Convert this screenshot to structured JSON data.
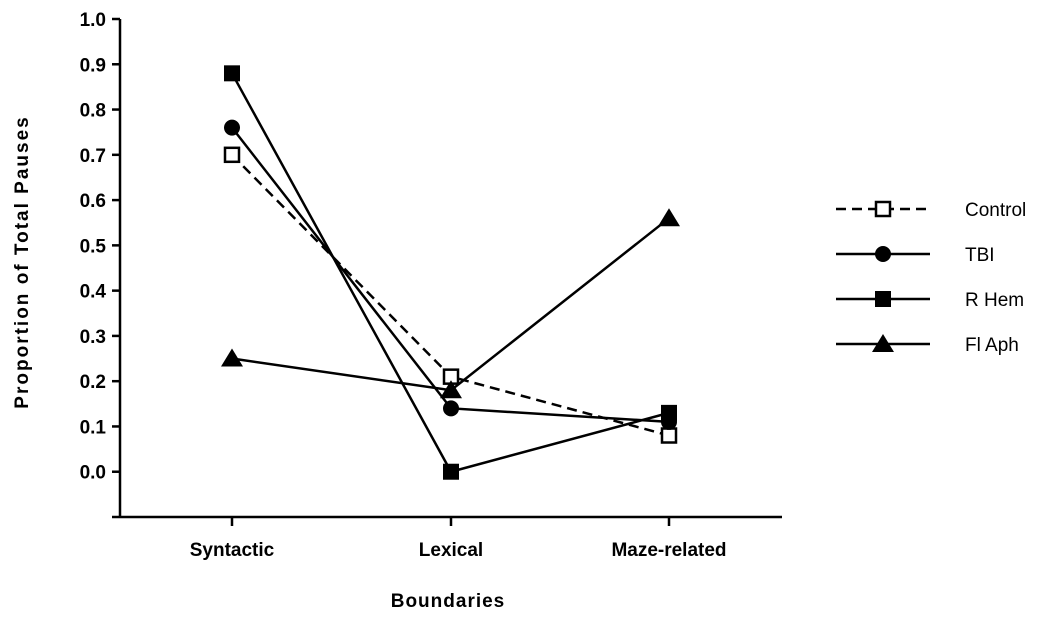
{
  "chart_data": {
    "type": "line",
    "xlabel": "Boundaries",
    "ylabel": "Proportion of Total Pauses",
    "categories": [
      "Syntactic",
      "Lexical",
      "Maze-related"
    ],
    "ylim": [
      -0.1,
      1.0
    ],
    "yticks": [
      "0.0",
      "0.1",
      "0.2",
      "0.3",
      "0.4",
      "0.5",
      "0.6",
      "0.7",
      "0.8",
      "0.9",
      "1.0"
    ],
    "grid": false,
    "legend_position": "right",
    "series": [
      {
        "name": "Control",
        "values": [
          0.7,
          0.21,
          0.08
        ],
        "marker": "open-square",
        "line": "dashed"
      },
      {
        "name": "TBI",
        "values": [
          0.76,
          0.14,
          0.11
        ],
        "marker": "filled-circle",
        "line": "solid"
      },
      {
        "name": "R Hem",
        "values": [
          0.88,
          0.0,
          0.13
        ],
        "marker": "filled-square",
        "line": "solid"
      },
      {
        "name": "Fl Aph",
        "values": [
          0.25,
          0.18,
          0.56
        ],
        "marker": "filled-triangle",
        "line": "solid"
      }
    ]
  }
}
